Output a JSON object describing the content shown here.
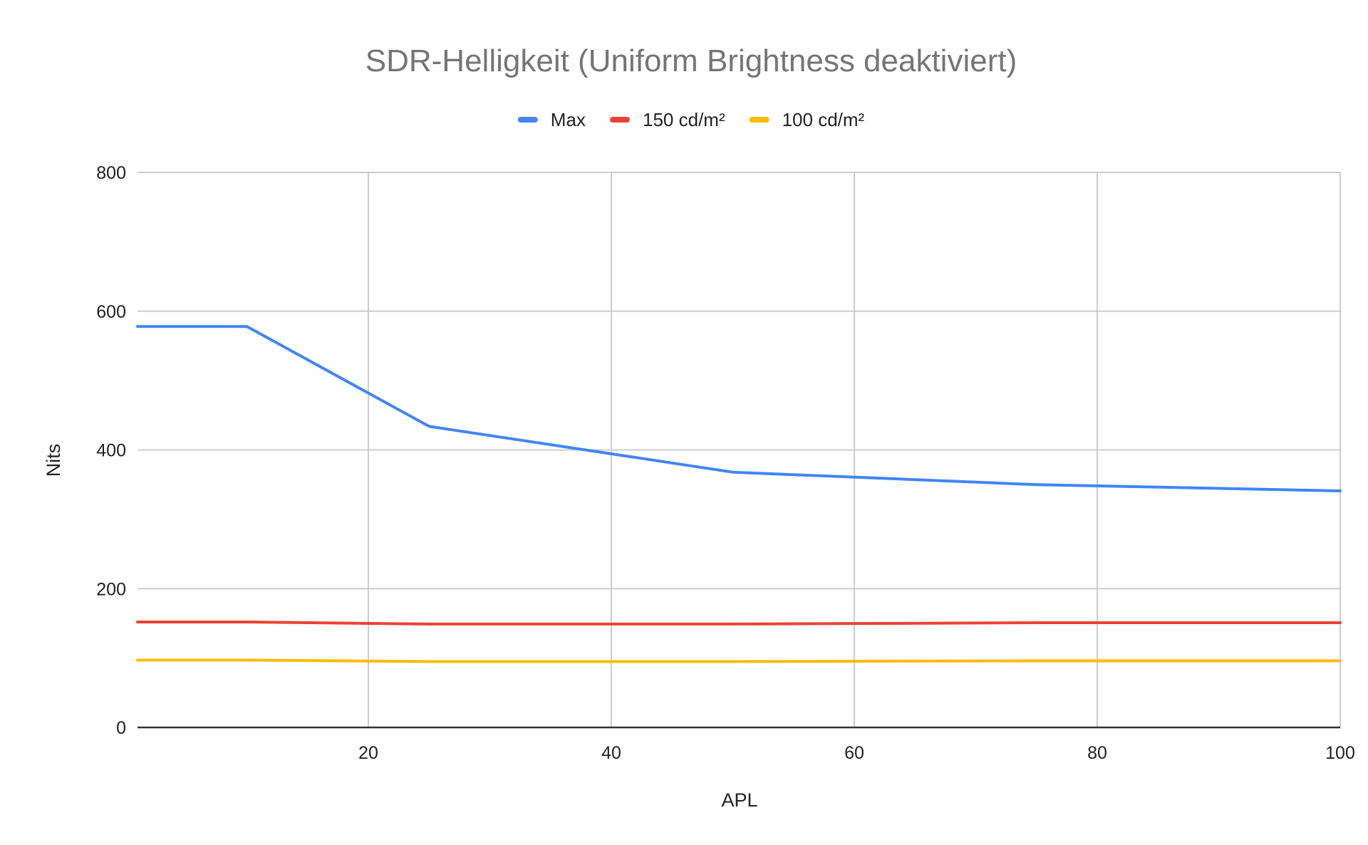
{
  "chart_data": {
    "type": "line",
    "title": "SDR-Helligkeit (Uniform Brightness deaktiviert)",
    "xlabel": "APL",
    "ylabel": "Nits",
    "xlim": [
      1,
      100
    ],
    "ylim": [
      0,
      800
    ],
    "x_ticks": [
      20,
      40,
      60,
      80,
      100
    ],
    "y_ticks": [
      0,
      200,
      400,
      600,
      800
    ],
    "grid": true,
    "legend_position": "top",
    "x": [
      1,
      10,
      25,
      50,
      75,
      100
    ],
    "series": [
      {
        "name": "Max",
        "color": "#4285f4",
        "values": [
          578,
          578,
          434,
          368,
          350,
          341
        ]
      },
      {
        "name": "150 cd/m²",
        "color": "#ea4335",
        "values": [
          152,
          152,
          149,
          149,
          151,
          151
        ]
      },
      {
        "name": "100 cd/m²",
        "color": "#fbbc04",
        "values": [
          97,
          97,
          95,
          95,
          96,
          96
        ]
      }
    ]
  }
}
